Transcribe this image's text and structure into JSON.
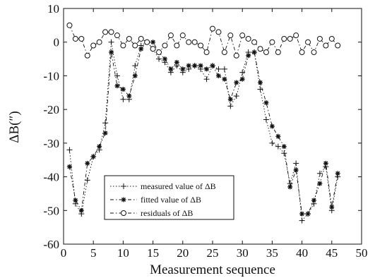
{
  "chart_data": {
    "type": "line",
    "xlabel": "Measurement sequence",
    "ylabel": "ΔB(″)",
    "xlim": [
      0,
      50
    ],
    "ylim": [
      -60,
      10
    ],
    "xticks": [
      0,
      5,
      10,
      15,
      20,
      25,
      30,
      35,
      40,
      45,
      50
    ],
    "yticks": [
      10,
      0,
      -10,
      -20,
      -30,
      -40,
      -50,
      -60
    ],
    "grid": false,
    "legend_position": "lower-left",
    "x": [
      1,
      2,
      3,
      4,
      5,
      6,
      7,
      8,
      9,
      10,
      11,
      12,
      13,
      14,
      15,
      16,
      17,
      18,
      19,
      20,
      21,
      22,
      23,
      24,
      25,
      26,
      27,
      28,
      29,
      30,
      31,
      32,
      33,
      34,
      35,
      36,
      37,
      38,
      39,
      40,
      41,
      42,
      43,
      44,
      45,
      46
    ],
    "series": [
      {
        "name": "measured value of ΔB",
        "marker": "+",
        "dash": "1.5,2.5",
        "values": [
          -32,
          -48,
          -51,
          -41,
          -34,
          -32,
          -24,
          0,
          -10,
          -17,
          -17,
          -7,
          -1,
          0,
          -2,
          -5,
          -6,
          -9,
          -7,
          -9,
          -8,
          -7,
          -8,
          -11,
          -7,
          -8,
          -8,
          -19,
          -16,
          -9,
          -3,
          -3,
          -14,
          -23,
          -30,
          -31,
          -33,
          -42,
          -36,
          -53,
          -51,
          -48,
          -39,
          -37,
          -50,
          -40
        ]
      },
      {
        "name": "fitted value of ΔB",
        "marker": "*",
        "dash": "5,3,1.5,3",
        "values": [
          -37,
          -47,
          -50,
          -36,
          -34,
          -31,
          -27,
          -3,
          -13,
          -14,
          -16,
          -10,
          -2,
          0,
          0,
          -3,
          -5,
          -8,
          -6,
          -8,
          -7,
          -7,
          -7,
          -8,
          -7,
          -10,
          -11,
          -17,
          -12,
          -11,
          -4,
          -3,
          -12,
          -18,
          -25,
          -28,
          -31,
          -43,
          -38,
          -51,
          -51,
          -47,
          -42,
          -36,
          -49,
          -39
        ]
      },
      {
        "name": "residuals of ΔB",
        "marker": "o",
        "dash": "5,3,1.5,3",
        "values": [
          5,
          1,
          1,
          -4,
          -1,
          0,
          3,
          3,
          2,
          -1,
          1,
          -1,
          1,
          0,
          -2,
          -3,
          -1,
          2,
          -1,
          2,
          0,
          0,
          -1,
          -3,
          4,
          3,
          -3,
          2,
          -4,
          2,
          1,
          0,
          -2,
          -3,
          0,
          -3,
          1,
          1,
          2,
          -3,
          0,
          -3,
          1,
          -1,
          1,
          -1
        ]
      }
    ]
  },
  "colors": {
    "ink": "#111111",
    "background": "#ffffff"
  }
}
